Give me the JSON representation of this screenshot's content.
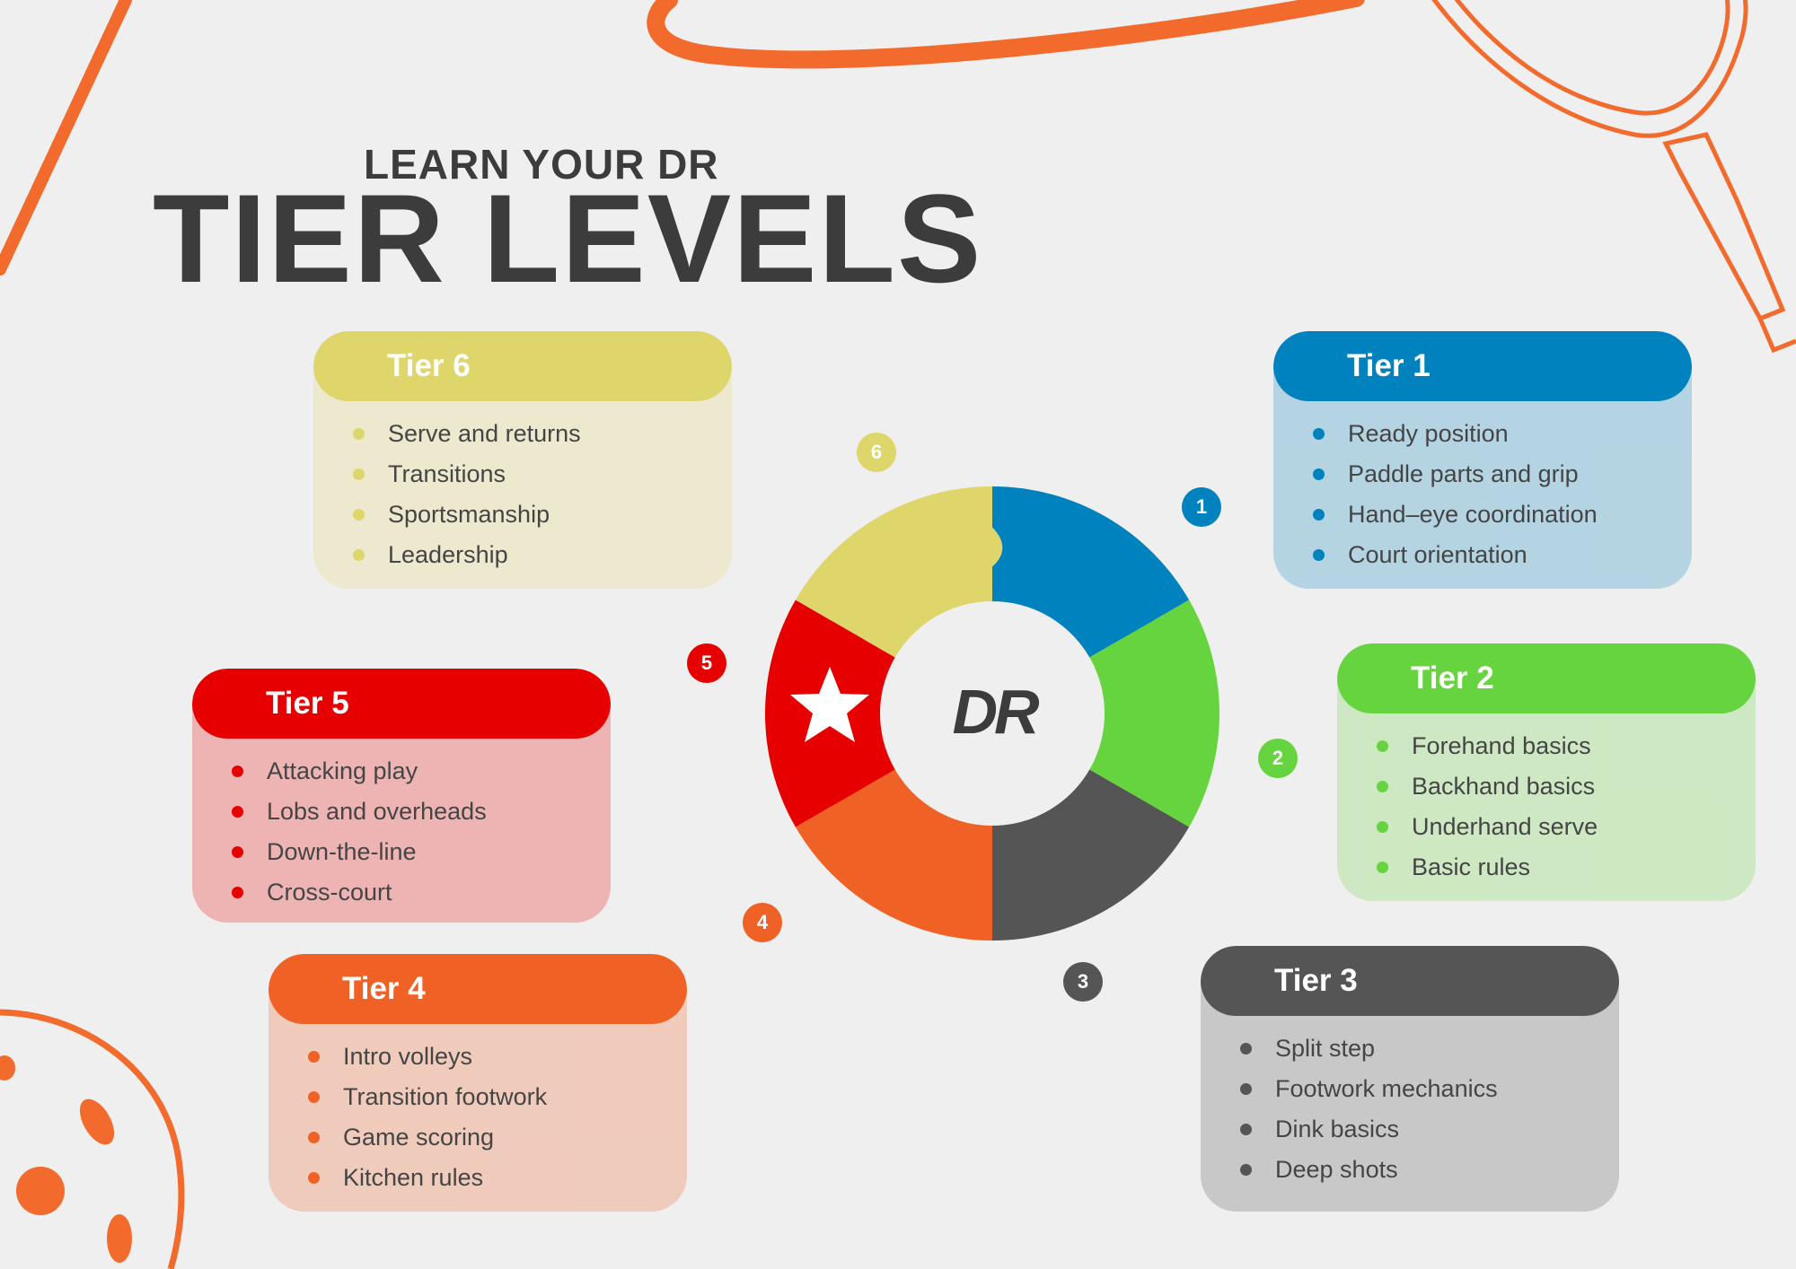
{
  "title": {
    "line1": "LEARN YOUR DR",
    "line2": "TIER LEVELS"
  },
  "logo": {
    "text": "DR"
  },
  "colors": {
    "tier1": "#0082be",
    "tier2": "#66d43e",
    "tier3": "#555555",
    "tier4": "#f06125",
    "tier5": "#e60000",
    "tier6": "#ded66b",
    "accent": "#f26a2c",
    "background": "#f0efef"
  },
  "tiers": [
    {
      "label": "Tier 1",
      "number": "1",
      "items": [
        "Ready position",
        "Paddle parts and grip",
        "Hand–eye coordination",
        "Court orientation"
      ]
    },
    {
      "label": "Tier 2",
      "number": "2",
      "items": [
        "Forehand basics",
        "Backhand basics",
        "Underhand serve",
        "Basic rules"
      ]
    },
    {
      "label": "Tier 3",
      "number": "3",
      "items": [
        "Split step",
        "Footwork mechanics",
        "Dink basics",
        "Deep shots"
      ]
    },
    {
      "label": "Tier 4",
      "number": "4",
      "items": [
        "Intro volleys",
        "Transition footwork",
        "Game scoring",
        "Kitchen rules"
      ]
    },
    {
      "label": "Tier 5",
      "number": "5",
      "items": [
        "Attacking play",
        "Lobs and overheads",
        "Down-the-line",
        "Cross-court"
      ]
    },
    {
      "label": "Tier 6",
      "number": "6",
      "items": [
        "Serve and returns",
        "Transitions",
        "Sportsmanship",
        "Leadership"
      ]
    }
  ],
  "icons": {
    "wheel_star": "star-icon",
    "paddle": "pickleball-paddle-icon",
    "ball": "pickleball-ball-icon"
  }
}
